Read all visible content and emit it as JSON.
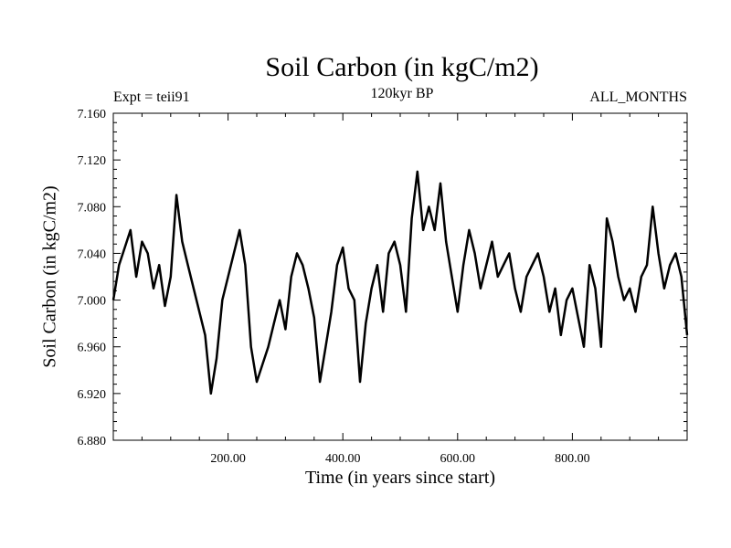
{
  "chart_data": {
    "type": "line",
    "title": "Soil Carbon (in kgC/m2)",
    "subtitle_left": "Expt = teii91",
    "subtitle_center": "120kyr BP",
    "subtitle_right": "ALL_MONTHS",
    "xlabel": "Time (in years since start)",
    "ylabel": "Soil Carbon (in kgC/m2)",
    "xlim": [
      0,
      1000
    ],
    "ylim": [
      6.88,
      7.16
    ],
    "x_ticks": [
      200,
      400,
      600,
      800
    ],
    "x_tick_labels": [
      "200.00",
      "400.00",
      "600.00",
      "800.00"
    ],
    "y_ticks": [
      6.88,
      6.92,
      6.96,
      7.0,
      7.04,
      7.08,
      7.12,
      7.16
    ],
    "y_tick_labels": [
      "6.880",
      "6.920",
      "6.960",
      "7.000",
      "7.040",
      "7.080",
      "7.120",
      "7.160"
    ],
    "grid": false,
    "line_color": "#000000",
    "series": [
      {
        "x": [
          0,
          10,
          20,
          30,
          40,
          50,
          60,
          70,
          80,
          90,
          100,
          110,
          120,
          130,
          140,
          150,
          160,
          170,
          180,
          190,
          200,
          210,
          220,
          230,
          240,
          250,
          260,
          270,
          280,
          290,
          300,
          310,
          320,
          330,
          340,
          350,
          360,
          370,
          380,
          390,
          400,
          410,
          420,
          430,
          440,
          450,
          460,
          470,
          480,
          490,
          500,
          510,
          520,
          530,
          540,
          550,
          560,
          570,
          580,
          590,
          600,
          610,
          620,
          630,
          640,
          650,
          660,
          670,
          680,
          690,
          700,
          710,
          720,
          730,
          740,
          750,
          760,
          770,
          780,
          790,
          800,
          810,
          820,
          830,
          840,
          850,
          860,
          870,
          880,
          890,
          900,
          910,
          920,
          930,
          940,
          950,
          960,
          970,
          980,
          990,
          1000
        ],
        "values": [
          7.0,
          7.03,
          7.045,
          7.06,
          7.02,
          7.05,
          7.04,
          7.01,
          7.03,
          6.995,
          7.02,
          7.09,
          7.05,
          7.03,
          7.01,
          6.99,
          6.97,
          6.92,
          6.95,
          7.0,
          7.02,
          7.04,
          7.06,
          7.03,
          6.96,
          6.93,
          6.945,
          6.96,
          6.98,
          7.0,
          6.975,
          7.02,
          7.04,
          7.03,
          7.01,
          6.985,
          6.93,
          6.96,
          6.99,
          7.03,
          7.045,
          7.01,
          7.0,
          6.93,
          6.98,
          7.01,
          7.03,
          6.99,
          7.04,
          7.05,
          7.03,
          6.99,
          7.07,
          7.11,
          7.06,
          7.08,
          7.06,
          7.1,
          7.05,
          7.02,
          6.99,
          7.03,
          7.06,
          7.04,
          7.01,
          7.03,
          7.05,
          7.02,
          7.03,
          7.04,
          7.01,
          6.99,
          7.02,
          7.03,
          7.04,
          7.02,
          6.99,
          7.01,
          6.97,
          7.0,
          7.01,
          6.985,
          6.96,
          7.03,
          7.01,
          6.96,
          7.07,
          7.05,
          7.02,
          7.0,
          7.01,
          6.99,
          7.02,
          7.03,
          7.08,
          7.04,
          7.01,
          7.03,
          7.04,
          7.02,
          6.97
        ]
      }
    ]
  }
}
